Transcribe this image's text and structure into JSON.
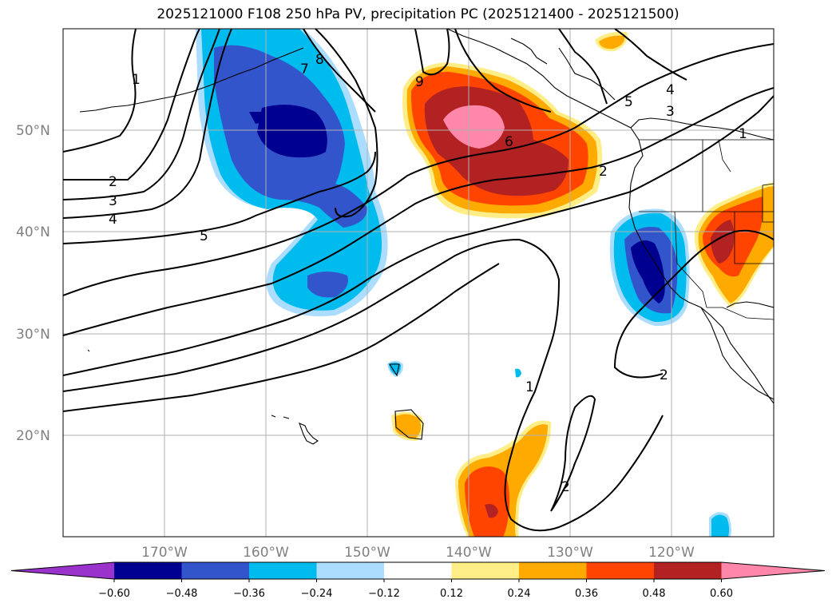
{
  "title": "2025121000 F108 250 hPa PV, precipitation PC (2025121400 - 2025121500)",
  "map": {
    "lat_labels": [
      "50°N",
      "40°N",
      "30°N",
      "20°N"
    ],
    "lon_labels": [
      "170°W",
      "160°W",
      "150°W",
      "140°W",
      "130°W",
      "120°W"
    ],
    "pv_contour_labels": [
      "1",
      "2",
      "3",
      "4",
      "5",
      "6",
      "7",
      "8",
      "9"
    ]
  },
  "colorbar": {
    "ticks": [
      "−0.60",
      "−0.48",
      "−0.36",
      "−0.24",
      "−0.12",
      "0.12",
      "0.24",
      "0.36",
      "0.48",
      "0.60"
    ],
    "colors": [
      "#9933cc",
      "#000090",
      "#3355cc",
      "#00bbee",
      "#aaddff",
      "#ffffff",
      "#ffee88",
      "#ffaa00",
      "#ff4400",
      "#b22222",
      "#ff88aa"
    ]
  },
  "legend_colors": {
    "neg_strong": "#000090",
    "neg_mid": "#3355cc",
    "neg_light": "#00bbee",
    "pos_light": "#ffaa00",
    "pos_mid": "#ff4400",
    "pos_strong": "#b22222",
    "pos_max": "#ff88aa"
  }
}
